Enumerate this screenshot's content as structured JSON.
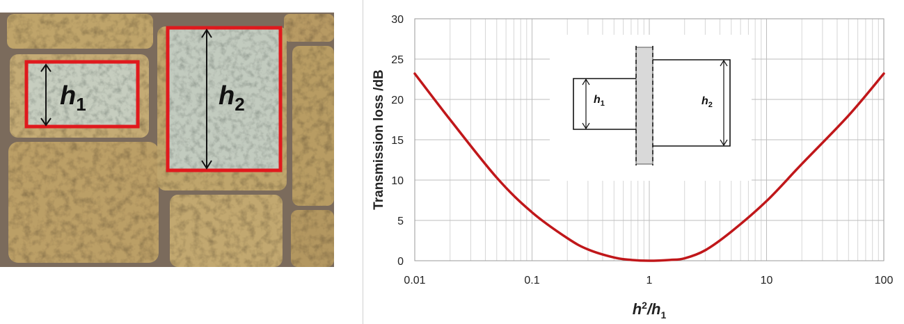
{
  "photo": {
    "label_h1": "h",
    "label_h1_sub": "1",
    "label_h2": "h",
    "label_h2_sub": "2",
    "frame_color": "#e0191d"
  },
  "chart_data": {
    "type": "line",
    "title": "",
    "xscale": "log",
    "xlim": [
      0.01,
      100
    ],
    "ylim": [
      0,
      30
    ],
    "xlabel": "h",
    "xlabel_sub_top": "2",
    "xlabel_mid": "/h",
    "xlabel_sub_bottom": "1",
    "ylabel": "Transmission  loss /dB",
    "xticks": [
      0.01,
      0.1,
      1,
      10,
      100
    ],
    "xtick_labels": [
      "0.01",
      "0.1",
      "1",
      "10",
      "100"
    ],
    "yticks": [
      0,
      5,
      10,
      15,
      20,
      25,
      30
    ],
    "ytick_labels": [
      "0",
      "5",
      "10",
      "15",
      "20",
      "25",
      "30"
    ],
    "grid": true,
    "line_color": "#c0171a",
    "series": [
      {
        "x": [
          0.01,
          0.02,
          0.05,
          0.1,
          0.2,
          0.3,
          0.5,
          0.7,
          1,
          1.5,
          2,
          3,
          5,
          10,
          20,
          50,
          100
        ],
        "y": [
          23.2,
          17.5,
          10.3,
          6.0,
          2.8,
          1.4,
          0.4,
          0.1,
          0,
          0.1,
          0.3,
          1.3,
          3.6,
          7.4,
          12.0,
          18.0,
          23.2
        ]
      }
    ],
    "inset": {
      "label_h1": "h",
      "label_h1_sub": "1",
      "label_h2": "h",
      "label_h2_sub": "2"
    }
  }
}
